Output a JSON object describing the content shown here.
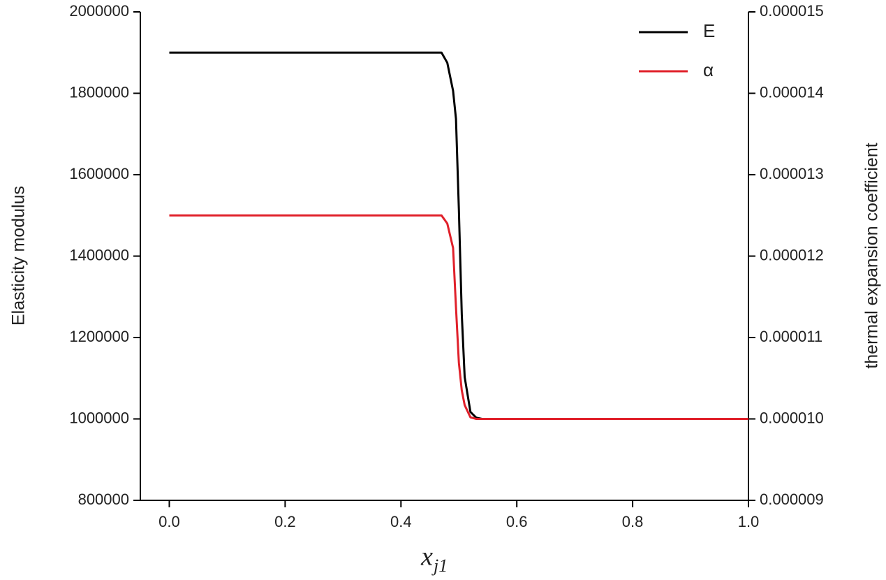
{
  "chart_data": {
    "type": "line",
    "xlabel": "x",
    "xlabel_subscript": "j1",
    "ylabel": "Elasticity modulus",
    "y2label": "thermal expansion coefficient",
    "x": [
      0,
      0.1,
      0.2,
      0.3,
      0.4,
      0.47,
      0.48,
      0.49,
      0.495,
      0.5,
      0.505,
      0.51,
      0.52,
      0.53,
      0.54,
      0.6,
      0.7,
      0.8,
      0.9,
      1.0
    ],
    "series": [
      {
        "name": "E",
        "color": "#000000",
        "axis": "y",
        "values": [
          1900000,
          1900000,
          1900000,
          1900000,
          1900000,
          1900000,
          1875000,
          1806000,
          1737000,
          1514000,
          1257000,
          1103000,
          1017000,
          1003000,
          1000000,
          1000000,
          1000000,
          1000000,
          1000000,
          1000000
        ]
      },
      {
        "name": "α",
        "color": "#e0202a",
        "axis": "y2",
        "values": [
          1.25e-05,
          1.25e-05,
          1.25e-05,
          1.25e-05,
          1.25e-05,
          1.25e-05,
          1.24e-05,
          1.21e-05,
          1.137e-05,
          1.069e-05,
          1.035e-05,
          1.017e-05,
          1.002e-05,
          1e-05,
          1e-05,
          1e-05,
          1e-05,
          1e-05,
          1e-05,
          1e-05
        ]
      }
    ],
    "xlim": [
      -0.05,
      1.0
    ],
    "xticks": [
      {
        "value": 0,
        "label": "0.0"
      },
      0.2,
      0.4,
      0.6,
      0.8,
      {
        "value": 1.0,
        "label": "1.0"
      }
    ],
    "ylim": [
      800000,
      2000000
    ],
    "yticks": [
      800000,
      1000000,
      1200000,
      1400000,
      1600000,
      1800000,
      2000000
    ],
    "y2lim": [
      9e-06,
      1.5e-05
    ],
    "y2ticks": [
      9e-06,
      {
        "value": 1e-05,
        "label": "0.000010"
      },
      1.1e-05,
      1.2e-05,
      1.3e-05,
      1.4e-05,
      1.5e-05
    ],
    "legend": "top-right"
  }
}
